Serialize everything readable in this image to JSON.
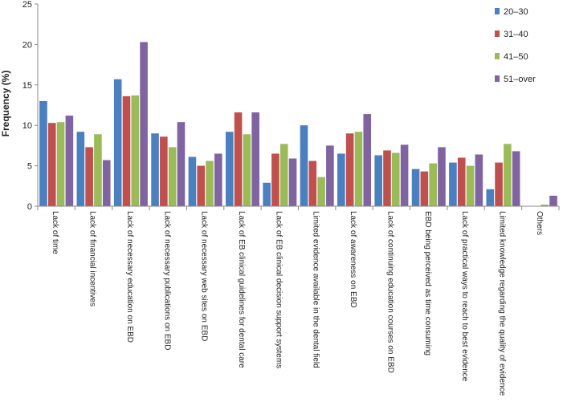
{
  "chart_data": {
    "type": "bar",
    "title": "",
    "xlabel": "",
    "ylabel": "Frequency (%)",
    "ylim": [
      0,
      25
    ],
    "yticks": [
      "0",
      "5",
      "10",
      "15",
      "20",
      "25"
    ],
    "grid": false,
    "legend_position": "top-right",
    "categories": [
      "Lack of time",
      "Lack of financial incentives",
      "Lack of necessary education on EBD",
      "Lack of necessary publications on EBD",
      "Lack of necessary web sites on EBD",
      "Lack of EB clinical guidelines for dental care",
      "Lack of EB clinical decision support systems",
      "Limited evidence available in the dental field",
      "Lack of awareness on EBD",
      "Lack of continuing education courses on EBD",
      "EBD being perceived as time consuming",
      "Lack of practical ways to reach to best evidence",
      "Limited knowledge regarding the quality of evidence",
      "Others"
    ],
    "series": [
      {
        "name": "20–30",
        "color": "#4a7fc0",
        "values": [
          13.0,
          9.2,
          15.7,
          9.0,
          6.1,
          9.2,
          2.9,
          10.0,
          6.5,
          6.3,
          4.6,
          5.4,
          2.1,
          0
        ]
      },
      {
        "name": "31–40",
        "color": "#c0504d",
        "values": [
          10.3,
          7.3,
          13.6,
          8.6,
          5.0,
          11.6,
          6.5,
          5.6,
          9.0,
          6.9,
          4.3,
          6.0,
          5.4,
          0
        ]
      },
      {
        "name": "41–50",
        "color": "#9bbb59",
        "values": [
          10.4,
          8.9,
          13.7,
          7.3,
          5.6,
          8.9,
          7.7,
          3.6,
          9.2,
          6.6,
          5.3,
          5.0,
          7.7,
          0.2
        ]
      },
      {
        "name": "51–over",
        "color": "#8064a2",
        "values": [
          11.2,
          5.7,
          20.3,
          10.4,
          6.5,
          11.6,
          5.9,
          7.5,
          11.4,
          7.6,
          7.3,
          6.4,
          6.8,
          1.3
        ]
      }
    ]
  }
}
